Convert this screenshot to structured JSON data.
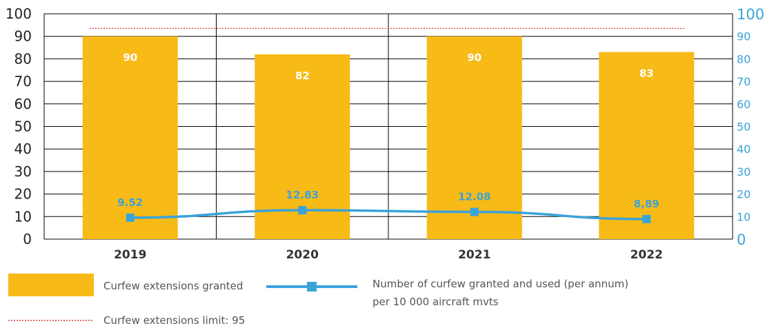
{
  "chart_data": {
    "type": "bar",
    "categories": [
      "2019",
      "2020",
      "2021",
      "2022"
    ],
    "series": [
      {
        "name": "Curfew extensions granted",
        "type": "bar",
        "axis": "left",
        "values": [
          90,
          82,
          90,
          83
        ],
        "labels": [
          "90",
          "82",
          "90",
          "83"
        ],
        "color": "#F7BA17"
      },
      {
        "name": "Number of curfew granted and used (per annum) per 10 000 aircraft mvts",
        "type": "line",
        "axis": "right",
        "values": [
          9.52,
          12.83,
          12.08,
          8.89
        ],
        "labels": [
          "9.52",
          "12.83",
          "12.08",
          "8,89"
        ],
        "color": "#3AA3DA"
      }
    ],
    "limit": {
      "label": "Curfew extensions limit: 95",
      "value": 95,
      "color": "#D3373A"
    },
    "y_left": {
      "min": 0,
      "max": 100,
      "ticks": [
        "0",
        "10",
        "20",
        "30",
        "40",
        "50",
        "60",
        "70",
        "80",
        "90",
        "100"
      ]
    },
    "y_right": {
      "min": 0,
      "max": 100,
      "ticks": [
        "0",
        "10",
        "20",
        "30",
        "40",
        "50",
        "60",
        "70",
        "80",
        "90",
        "100"
      ]
    },
    "grid": true,
    "legend_position": "bottom-left"
  },
  "legend": {
    "bar_label": "Curfew extensions granted",
    "line_label_1": "Number of curfew granted and used (per annum)",
    "line_label_2": "per 10 000 aircraft mvts",
    "limit_label": "Curfew extensions limit: 95"
  }
}
